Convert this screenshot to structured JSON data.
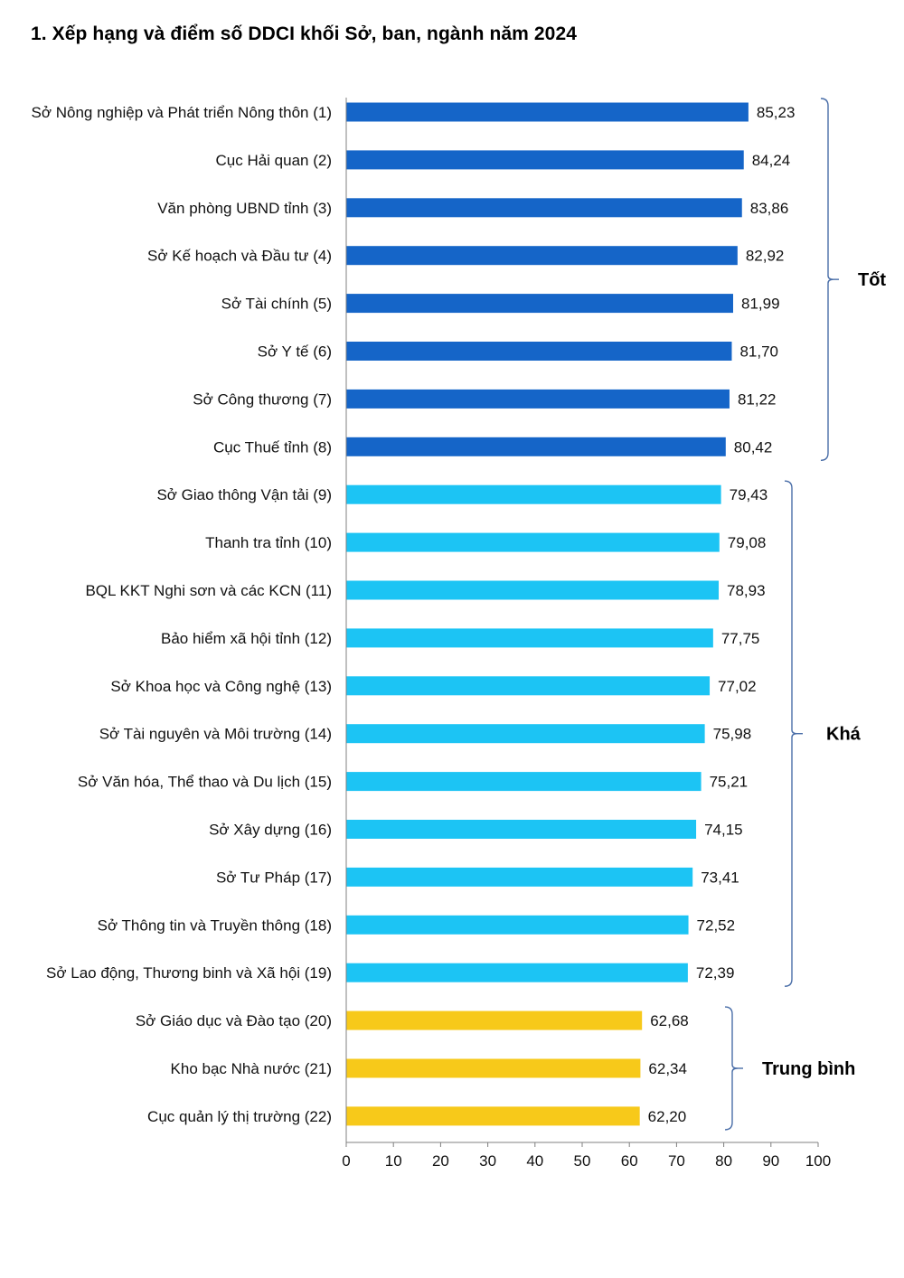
{
  "chart_data": {
    "type": "bar",
    "orientation": "horizontal",
    "title": "1. Xếp hạng và điểm số DDCI khối Sở, ban, ngành năm 2024",
    "categories": [
      "Sở Nông nghiệp và Phát triển Nông thôn (1)",
      "Cục Hải quan (2)",
      "Văn phòng UBND tỉnh (3)",
      "Sở Kế hoạch và Đầu tư (4)",
      "Sở Tài chính (5)",
      "Sở Y tế (6)",
      "Sở Công thương (7)",
      "Cục Thuế tỉnh (8)",
      "Sở Giao thông Vận tải (9)",
      "Thanh tra tỉnh (10)",
      "BQL KKT Nghi sơn và các KCN (11)",
      "Bảo hiểm xã hội tỉnh (12)",
      "Sở Khoa học và Công nghệ (13)",
      "Sở Tài nguyên và Môi trường (14)",
      "Sở Văn hóa, Thể thao và Du lịch (15)",
      "Sở Xây dựng (16)",
      "Sở Tư Pháp (17)",
      "Sở Thông tin và Truyền thông (18)",
      "Sở Lao động, Thương binh và Xã hội (19)",
      "Sở Giáo dục và Đào tạo (20)",
      "Kho bạc Nhà nước (21)",
      "Cục quản lý thị trường (22)"
    ],
    "values": [
      85.23,
      84.24,
      83.86,
      82.92,
      81.99,
      81.7,
      81.22,
      80.42,
      79.43,
      79.08,
      78.93,
      77.75,
      77.02,
      75.98,
      75.21,
      74.15,
      73.41,
      72.52,
      72.39,
      62.68,
      62.34,
      62.2
    ],
    "value_labels": [
      "85,23",
      "84,24",
      "83,86",
      "82,92",
      "81,99",
      "81,70",
      "81,22",
      "80,42",
      "79,43",
      "79,08",
      "78,93",
      "77,75",
      "77,02",
      "75,98",
      "75,21",
      "74,15",
      "73,41",
      "72,52",
      "72,39",
      "62,68",
      "62,34",
      "62,20"
    ],
    "xlim": [
      0,
      100
    ],
    "xticks": [
      0,
      10,
      20,
      30,
      40,
      50,
      60,
      70,
      80,
      90,
      100
    ],
    "grid": false,
    "groups": [
      {
        "label": "Tốt",
        "first": 0,
        "last": 7,
        "color": "#1565c8"
      },
      {
        "label": "Khá",
        "first": 8,
        "last": 18,
        "color": "#1cc4f4"
      },
      {
        "label": "Trung bình",
        "first": 19,
        "last": 21,
        "color": "#f7c91a"
      }
    ],
    "bracket_color": "#4a6ea8"
  }
}
